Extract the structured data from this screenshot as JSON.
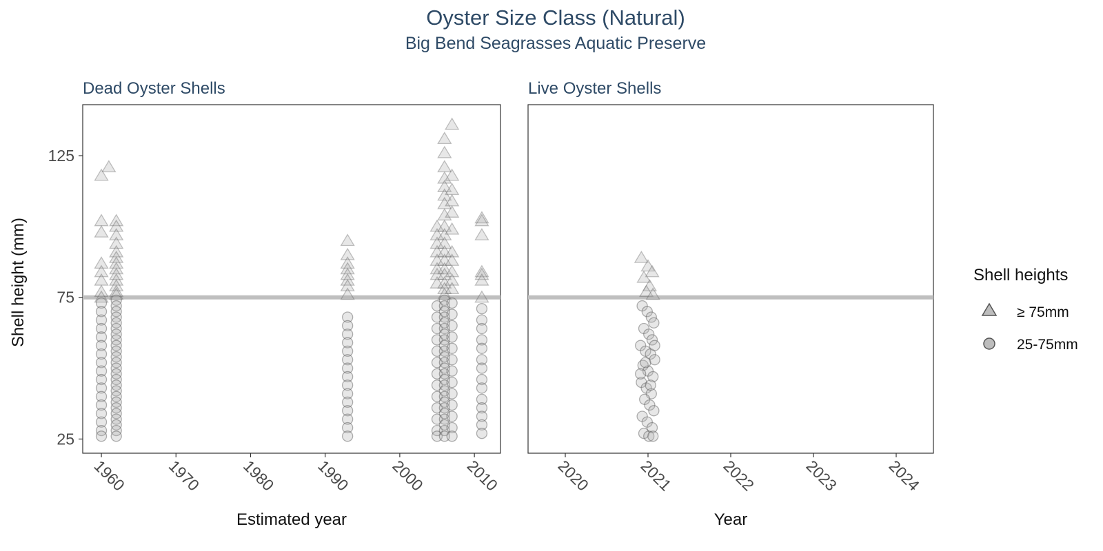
{
  "title": "Oyster Size Class (Natural)",
  "subtitle": "Big Bend Seagrasses Aquatic Preserve",
  "y_axis_label": "Shell height (mm)",
  "legend": {
    "title": "Shell heights",
    "items": [
      {
        "label": "≥ 75mm",
        "shape": "triangle"
      },
      {
        "label": "25-75mm",
        "shape": "circle"
      }
    ]
  },
  "colors": {
    "text_title": "#2e4a66",
    "reference_line": "#bfbfbf",
    "marker_fill": "#b0b0b0",
    "marker_stroke": "#555555"
  },
  "chart_data": {
    "type": "scatter",
    "y_ticks": [
      25,
      75,
      125
    ],
    "ylim": [
      20,
      143
    ],
    "reference_line_y": 75,
    "panels": [
      {
        "facet_label": "Dead Oyster Shells",
        "xlabel": "Estimated year",
        "xlim": [
          1957.5,
          2013.5
        ],
        "x_ticks": [
          1960,
          1970,
          1980,
          1990,
          2000,
          2010
        ],
        "series": [
          {
            "name": "≥ 75mm",
            "shape": "triangle",
            "points": [
              [
                1960,
                118
              ],
              [
                1961,
                121
              ],
              [
                1960,
                102
              ],
              [
                1960,
                98
              ],
              [
                1960,
                87
              ],
              [
                1960,
                84
              ],
              [
                1960,
                81
              ],
              [
                1960,
                77
              ],
              [
                1960,
                75
              ],
              [
                1962,
                102
              ],
              [
                1962,
                100
              ],
              [
                1962,
                97
              ],
              [
                1962,
                94
              ],
              [
                1962,
                91
              ],
              [
                1962,
                89
              ],
              [
                1962,
                87
              ],
              [
                1962,
                85
              ],
              [
                1962,
                83
              ],
              [
                1962,
                81
              ],
              [
                1962,
                79
              ],
              [
                1962,
                77
              ],
              [
                1962,
                76
              ],
              [
                1993,
                95
              ],
              [
                1993,
                90
              ],
              [
                1993,
                87
              ],
              [
                1993,
                85
              ],
              [
                1993,
                83
              ],
              [
                1993,
                81
              ],
              [
                1993,
                79
              ],
              [
                1993,
                76
              ],
              [
                2005,
                100
              ],
              [
                2005,
                97
              ],
              [
                2005,
                94
              ],
              [
                2005,
                91
              ],
              [
                2005,
                88
              ],
              [
                2005,
                85
              ],
              [
                2005,
                83
              ],
              [
                2005,
                80
              ],
              [
                2006,
                131
              ],
              [
                2006,
                126
              ],
              [
                2006,
                121
              ],
              [
                2006,
                117
              ],
              [
                2006,
                114
              ],
              [
                2006,
                111
              ],
              [
                2006,
                108
              ],
              [
                2006,
                104
              ],
              [
                2006,
                100
              ],
              [
                2006,
                97
              ],
              [
                2006,
                94
              ],
              [
                2006,
                91
              ],
              [
                2006,
                88
              ],
              [
                2006,
                85
              ],
              [
                2006,
                83
              ],
              [
                2006,
                80
              ],
              [
                2006,
                78
              ],
              [
                2006,
                76
              ],
              [
                2007,
                136
              ],
              [
                2007,
                118
              ],
              [
                2007,
                113
              ],
              [
                2007,
                109
              ],
              [
                2007,
                105
              ],
              [
                2007,
                99
              ],
              [
                2007,
                91
              ],
              [
                2007,
                88
              ],
              [
                2007,
                84
              ],
              [
                2007,
                81
              ],
              [
                2007,
                78
              ],
              [
                2011,
                103
              ],
              [
                2011,
                102
              ],
              [
                2011,
                97
              ],
              [
                2011,
                84
              ],
              [
                2011,
                83
              ],
              [
                2011,
                81
              ],
              [
                2011,
                75
              ]
            ]
          },
          {
            "name": "25-75mm",
            "shape": "circle",
            "points": [
              [
                1960,
                73
              ],
              [
                1960,
                70
              ],
              [
                1960,
                67
              ],
              [
                1960,
                64
              ],
              [
                1960,
                61
              ],
              [
                1960,
                58
              ],
              [
                1960,
                55
              ],
              [
                1960,
                52
              ],
              [
                1960,
                49
              ],
              [
                1960,
                46
              ],
              [
                1960,
                43
              ],
              [
                1960,
                40
              ],
              [
                1960,
                37
              ],
              [
                1960,
                34
              ],
              [
                1960,
                31
              ],
              [
                1960,
                28
              ],
              [
                1960,
                26
              ],
              [
                1962,
                74
              ],
              [
                1962,
                72
              ],
              [
                1962,
                70
              ],
              [
                1962,
                68
              ],
              [
                1962,
                66
              ],
              [
                1962,
                64
              ],
              [
                1962,
                62
              ],
              [
                1962,
                60
              ],
              [
                1962,
                58
              ],
              [
                1962,
                56
              ],
              [
                1962,
                54
              ],
              [
                1962,
                52
              ],
              [
                1962,
                50
              ],
              [
                1962,
                48
              ],
              [
                1962,
                46
              ],
              [
                1962,
                44
              ],
              [
                1962,
                42
              ],
              [
                1962,
                40
              ],
              [
                1962,
                38
              ],
              [
                1962,
                36
              ],
              [
                1962,
                34
              ],
              [
                1962,
                32
              ],
              [
                1962,
                30
              ],
              [
                1962,
                28
              ],
              [
                1962,
                26
              ],
              [
                1993,
                68
              ],
              [
                1993,
                65
              ],
              [
                1993,
                62
              ],
              [
                1993,
                59
              ],
              [
                1993,
                56
              ],
              [
                1993,
                53
              ],
              [
                1993,
                50
              ],
              [
                1993,
                47
              ],
              [
                1993,
                44
              ],
              [
                1993,
                41
              ],
              [
                1993,
                38
              ],
              [
                1993,
                35
              ],
              [
                1993,
                32
              ],
              [
                1993,
                29
              ],
              [
                1993,
                26
              ],
              [
                2005,
                72
              ],
              [
                2005,
                68
              ],
              [
                2005,
                64
              ],
              [
                2005,
                60
              ],
              [
                2005,
                56
              ],
              [
                2005,
                52
              ],
              [
                2005,
                48
              ],
              [
                2005,
                44
              ],
              [
                2005,
                40
              ],
              [
                2005,
                36
              ],
              [
                2005,
                32
              ],
              [
                2005,
                28
              ],
              [
                2005,
                26
              ],
              [
                2006,
                74
              ],
              [
                2006,
                72
              ],
              [
                2006,
                70
              ],
              [
                2006,
                68
              ],
              [
                2006,
                66
              ],
              [
                2006,
                64
              ],
              [
                2006,
                62
              ],
              [
                2006,
                60
              ],
              [
                2006,
                58
              ],
              [
                2006,
                56
              ],
              [
                2006,
                54
              ],
              [
                2006,
                52
              ],
              [
                2006,
                50
              ],
              [
                2006,
                48
              ],
              [
                2006,
                46
              ],
              [
                2006,
                44
              ],
              [
                2006,
                42
              ],
              [
                2006,
                40
              ],
              [
                2006,
                38
              ],
              [
                2006,
                36
              ],
              [
                2006,
                34
              ],
              [
                2006,
                32
              ],
              [
                2006,
                30
              ],
              [
                2006,
                28
              ],
              [
                2006,
                26
              ],
              [
                2007,
                73
              ],
              [
                2007,
                69
              ],
              [
                2007,
                65
              ],
              [
                2007,
                61
              ],
              [
                2007,
                57
              ],
              [
                2007,
                53
              ],
              [
                2007,
                49
              ],
              [
                2007,
                45
              ],
              [
                2007,
                41
              ],
              [
                2007,
                37
              ],
              [
                2007,
                33
              ],
              [
                2007,
                29
              ],
              [
                2007,
                26
              ],
              [
                2011,
                71
              ],
              [
                2011,
                67
              ],
              [
                2011,
                64
              ],
              [
                2011,
                60
              ],
              [
                2011,
                57
              ],
              [
                2011,
                53
              ],
              [
                2011,
                50
              ],
              [
                2011,
                46
              ],
              [
                2011,
                43
              ],
              [
                2011,
                39
              ],
              [
                2011,
                36
              ],
              [
                2011,
                33
              ],
              [
                2011,
                30
              ],
              [
                2011,
                27
              ]
            ]
          }
        ]
      },
      {
        "facet_label": "Live Oyster Shells",
        "xlabel": "Year",
        "xlim": [
          2019.55,
          2024.45
        ],
        "x_ticks": [
          2020,
          2021,
          2022,
          2023,
          2024
        ],
        "series": [
          {
            "name": "≥ 75mm",
            "shape": "triangle",
            "points": [
              [
                2020.92,
                89
              ],
              [
                2021.0,
                86
              ],
              [
                2021.05,
                84
              ],
              [
                2020.95,
                82
              ],
              [
                2021.02,
                79
              ],
              [
                2020.98,
                77
              ],
              [
                2021.06,
                76
              ]
            ]
          },
          {
            "name": "25-75mm",
            "shape": "circle",
            "points": [
              [
                2020.93,
                72
              ],
              [
                2020.99,
                70
              ],
              [
                2021.04,
                68
              ],
              [
                2021.07,
                66
              ],
              [
                2020.95,
                64
              ],
              [
                2021.01,
                62
              ],
              [
                2021.05,
                60
              ],
              [
                2020.91,
                58
              ],
              [
                2020.97,
                56
              ],
              [
                2021.03,
                55
              ],
              [
                2021.08,
                53
              ],
              [
                2020.94,
                51
              ],
              [
                2021.0,
                49
              ],
              [
                2021.06,
                47
              ],
              [
                2020.92,
                45
              ],
              [
                2020.98,
                43
              ],
              [
                2021.04,
                41
              ],
              [
                2020.96,
                39
              ],
              [
                2021.02,
                37
              ],
              [
                2021.07,
                35
              ],
              [
                2020.93,
                33
              ],
              [
                2020.99,
                31
              ],
              [
                2021.05,
                29
              ],
              [
                2020.95,
                27
              ],
              [
                2021.01,
                26
              ],
              [
                2021.06,
                26
              ],
              [
                2020.91,
                48
              ],
              [
                2021.08,
                58
              ],
              [
                2021.03,
                44
              ],
              [
                2020.97,
                52
              ]
            ]
          }
        ]
      }
    ]
  }
}
